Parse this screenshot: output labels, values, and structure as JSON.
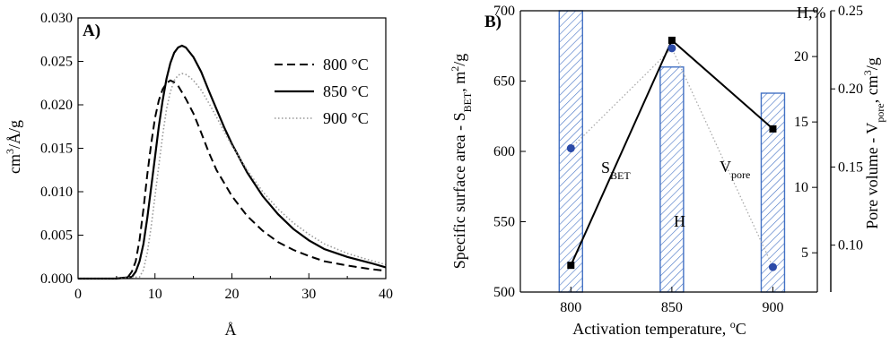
{
  "chart_data": [
    {
      "panel_label": "A)",
      "type": "line",
      "xlabel": "Å",
      "ylabel": "cm³/Å/g",
      "xlim": [
        0,
        40
      ],
      "ylim": [
        0,
        0.03
      ],
      "xticks": [
        "0",
        "10",
        "20",
        "30",
        "40"
      ],
      "yticks": [
        "0.000",
        "0.005",
        "0.010",
        "0.015",
        "0.020",
        "0.025",
        "0.030"
      ],
      "grid": false,
      "legend_position": "right",
      "series": [
        {
          "name": "800 °C",
          "style": "dashed",
          "color": "#000000",
          "x": [
            0,
            5,
            6.5,
            7,
            7.5,
            8,
            8.5,
            9,
            9.5,
            10,
            10.5,
            11,
            11.5,
            12,
            12.5,
            13,
            14,
            15,
            16,
            17,
            18,
            19,
            20,
            22,
            24,
            26,
            28,
            30,
            32,
            35,
            38,
            40
          ],
          "y": [
            0,
            0,
            0.0002,
            0.0008,
            0.002,
            0.0045,
            0.008,
            0.012,
            0.0155,
            0.0185,
            0.0205,
            0.0218,
            0.0225,
            0.0228,
            0.0226,
            0.0222,
            0.0207,
            0.019,
            0.0168,
            0.0145,
            0.0125,
            0.011,
            0.0095,
            0.0072,
            0.0055,
            0.0042,
            0.0033,
            0.0026,
            0.002,
            0.0015,
            0.0011,
            0.0009
          ]
        },
        {
          "name": "850 °C",
          "style": "solid",
          "color": "#000000",
          "x": [
            0,
            5,
            7,
            7.5,
            8,
            8.5,
            9,
            9.5,
            10,
            10.5,
            11,
            11.5,
            12,
            12.5,
            13,
            13.5,
            14,
            15,
            16,
            17,
            18,
            19,
            20,
            22,
            24,
            26,
            28,
            30,
            32,
            35,
            38,
            40
          ],
          "y": [
            0,
            0,
            0.0002,
            0.0008,
            0.002,
            0.004,
            0.007,
            0.0105,
            0.014,
            0.0175,
            0.0205,
            0.023,
            0.0248,
            0.026,
            0.0266,
            0.0268,
            0.0266,
            0.0255,
            0.0238,
            0.0216,
            0.0195,
            0.0174,
            0.0155,
            0.0122,
            0.0095,
            0.0074,
            0.0057,
            0.0044,
            0.0034,
            0.0025,
            0.0018,
            0.0013
          ]
        },
        {
          "name": "900 °C",
          "style": "dotted",
          "color": "#999999",
          "x": [
            0,
            5,
            8,
            8.5,
            9,
            9.5,
            10,
            10.5,
            11,
            11.5,
            12,
            12.5,
            13,
            13.5,
            14,
            14.5,
            15,
            16,
            17,
            18,
            19,
            20,
            22,
            24,
            26,
            28,
            30,
            32,
            35,
            38,
            40
          ],
          "y": [
            0,
            0,
            0.0002,
            0.001,
            0.003,
            0.006,
            0.0095,
            0.013,
            0.0165,
            0.0195,
            0.0215,
            0.0228,
            0.0234,
            0.0236,
            0.0235,
            0.0232,
            0.0228,
            0.0217,
            0.0202,
            0.0186,
            0.0169,
            0.0153,
            0.0125,
            0.01,
            0.008,
            0.0064,
            0.0051,
            0.004,
            0.0029,
            0.0021,
            0.0016
          ]
        }
      ]
    },
    {
      "panel_label": "B)",
      "type": "bar",
      "xlabel": "Activation temperature, °C",
      "ylabel_left": "Specific surface area - S_BET, m²/g",
      "ylabel_right_inner": "H,%",
      "ylabel_right_outer": "Pore volume - V_pore, cm³/g",
      "categories": [
        "800",
        "850",
        "900"
      ],
      "x": [
        800,
        850,
        900
      ],
      "xlim": [
        775,
        922
      ],
      "ylim_left": [
        500,
        700
      ],
      "ylim_h": [
        2,
        23.5
      ],
      "ylim_vpore": [
        0.07,
        0.25
      ],
      "yticks_left": [
        "500",
        "550",
        "600",
        "650",
        "700"
      ],
      "yticks_h": [
        "5",
        "10",
        "15",
        "20"
      ],
      "yticks_vpore": [
        "0.10",
        "0.15",
        "0.20",
        "0.25"
      ],
      "grid": false,
      "bar_color": "#4472c4",
      "series": [
        {
          "name": "H",
          "type": "bar",
          "axis": "h",
          "values": [
            23.5,
            19.2,
            17.2
          ]
        },
        {
          "name": "S_BET",
          "type": "line-marker",
          "marker": "square",
          "axis": "left",
          "color": "#000000",
          "values": [
            519,
            679,
            616
          ]
        },
        {
          "name": "V_pore",
          "type": "dotted-line",
          "marker": "circle",
          "axis": "vpore",
          "color": "#2b4aa8",
          "values": [
            0.162,
            0.226,
            0.086
          ]
        }
      ],
      "series_labels": {
        "sbet_main": "S",
        "sbet_sub": "BET",
        "h": "H",
        "vpore_main": "V",
        "vpore_sub": "pore"
      }
    }
  ]
}
